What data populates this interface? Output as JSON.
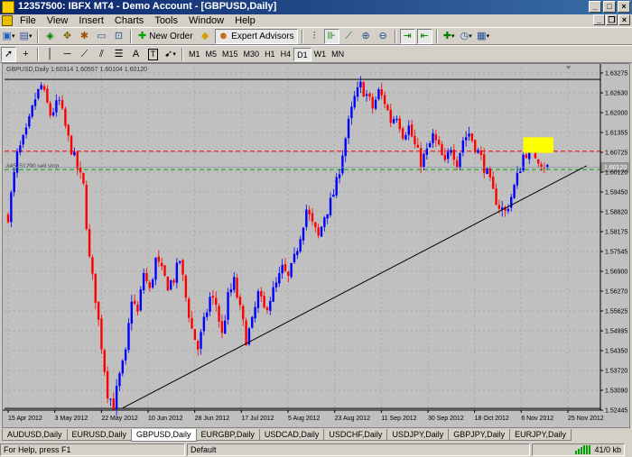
{
  "window": {
    "title": "12357500: IBFX MT4 - Demo Account - [GBPUSD,Daily]"
  },
  "menu": [
    "File",
    "View",
    "Insert",
    "Charts",
    "Tools",
    "Window",
    "Help"
  ],
  "toolbar": {
    "new_order": "New Order",
    "expert_advisors": "Expert Advisors",
    "timeframes": [
      "M1",
      "M5",
      "M15",
      "M30",
      "H1",
      "H4",
      "D1",
      "W1",
      "MN"
    ],
    "active_timeframe": "D1",
    "text_tool": "A",
    "text_label_tool": "T"
  },
  "chart": {
    "header": "GBPUSD,Daily  1.60314 1.60557 1.60104 1.60120",
    "order_label": "#45151290 sell stop",
    "current_price": "1.60120",
    "colors": {
      "bull": "#0000ff",
      "bear": "#ff0000",
      "grid": "#a8a8a8",
      "bg": "#c0c0c0",
      "box": "#ffff00"
    },
    "price_labels": [
      "1.63275",
      "1.62630",
      "1.62000",
      "1.61355",
      "1.60725",
      "1.60120",
      "1.59450",
      "1.58820",
      "1.58175",
      "1.57545",
      "1.56900",
      "1.56270",
      "1.55625",
      "1.54995",
      "1.54350",
      "1.53720",
      "1.53090",
      "1.52445"
    ],
    "date_labels": [
      "15 Apr 2012",
      "3 May 2012",
      "22 May 2012",
      "10 Jun 2012",
      "28 Jun 2012",
      "17 Jul 2012",
      "5 Aug 2012",
      "23 Aug 2012",
      "11 Sep 2012",
      "30 Sep 2012",
      "18 Oct 2012",
      "6 Nov 2012",
      "25 Nov 2012"
    ],
    "y_range": [
      1.52445,
      1.63275
    ],
    "levels": {
      "top_line": 1.629,
      "bottom_line": 1.525,
      "sell_stop": 1.6005,
      "red_dash": 1.6063
    },
    "trendline": {
      "from": {
        "bar": 38,
        "price": 1.5251
      },
      "to": {
        "bar": 192,
        "price": 1.6017
      }
    },
    "highlight_box": {
      "bar_from": 171,
      "bar_to": 181,
      "price_top": 1.6107,
      "price_bottom": 1.6058
    },
    "ohlc_close_path": [
      [
        0,
        1.586
      ],
      [
        3,
        1.605
      ],
      [
        6,
        1.612
      ],
      [
        9,
        1.623
      ],
      [
        11,
        1.627
      ],
      [
        14,
        1.618
      ],
      [
        17,
        1.622
      ],
      [
        20,
        1.61
      ],
      [
        23,
        1.601
      ],
      [
        25,
        1.595
      ],
      [
        27,
        1.572
      ],
      [
        29,
        1.56
      ],
      [
        31,
        1.545
      ],
      [
        33,
        1.53
      ],
      [
        35,
        1.526
      ],
      [
        37,
        1.535
      ],
      [
        39,
        1.542
      ],
      [
        41,
        1.56
      ],
      [
        43,
        1.555
      ],
      [
        45,
        1.568
      ],
      [
        47,
        1.562
      ],
      [
        49,
        1.572
      ],
      [
        51,
        1.568
      ],
      [
        53,
        1.564
      ],
      [
        55,
        1.566
      ],
      [
        57,
        1.572
      ],
      [
        59,
        1.56
      ],
      [
        61,
        1.55
      ],
      [
        63,
        1.544
      ],
      [
        65,
        1.552
      ],
      [
        67,
        1.56
      ],
      [
        69,
        1.558
      ],
      [
        71,
        1.548
      ],
      [
        73,
        1.56
      ],
      [
        75,
        1.565
      ],
      [
        77,
        1.556
      ],
      [
        79,
        1.547
      ],
      [
        81,
        1.552
      ],
      [
        83,
        1.561
      ],
      [
        85,
        1.556
      ],
      [
        87,
        1.56
      ],
      [
        89,
        1.564
      ],
      [
        91,
        1.569
      ],
      [
        93,
        1.566
      ],
      [
        95,
        1.572
      ],
      [
        97,
        1.58
      ],
      [
        99,
        1.588
      ],
      [
        101,
        1.583
      ],
      [
        103,
        1.579
      ],
      [
        105,
        1.586
      ],
      [
        107,
        1.59
      ],
      [
        109,
        1.596
      ],
      [
        111,
        1.606
      ],
      [
        113,
        1.615
      ],
      [
        115,
        1.623
      ],
      [
        117,
        1.627
      ],
      [
        119,
        1.624
      ],
      [
        121,
        1.62
      ],
      [
        123,
        1.625
      ],
      [
        125,
        1.622
      ],
      [
        127,
        1.616
      ],
      [
        129,
        1.618
      ],
      [
        131,
        1.612
      ],
      [
        133,
        1.614
      ],
      [
        135,
        1.608
      ],
      [
        137,
        1.603
      ],
      [
        139,
        1.606
      ],
      [
        141,
        1.611
      ],
      [
        143,
        1.607
      ],
      [
        145,
        1.602
      ],
      [
        147,
        1.608
      ],
      [
        149,
        1.603
      ],
      [
        151,
        1.61
      ],
      [
        153,
        1.612
      ],
      [
        155,
        1.608
      ],
      [
        157,
        1.604
      ],
      [
        159,
        1.599
      ],
      [
        161,
        1.593
      ],
      [
        163,
        1.589
      ],
      [
        165,
        1.587
      ],
      [
        167,
        1.592
      ],
      [
        169,
        1.598
      ],
      [
        171,
        1.605
      ],
      [
        173,
        1.607
      ],
      [
        175,
        1.605
      ],
      [
        177,
        1.603
      ],
      [
        179,
        1.6012
      ]
    ]
  },
  "tabs": [
    "AUDUSD,Daily",
    "EURUSD,Daily",
    "GBPUSD,Daily",
    "EURGBP,Daily",
    "USDCAD,Daily",
    "USDCHF,Daily",
    "USDJPY,Daily",
    "GBPJPY,Daily",
    "EURJPY,Daily"
  ],
  "active_tab": "GBPUSD,Daily",
  "status": {
    "help": "For Help, press F1",
    "profile": "Default",
    "traffic": "41/0 kb"
  }
}
